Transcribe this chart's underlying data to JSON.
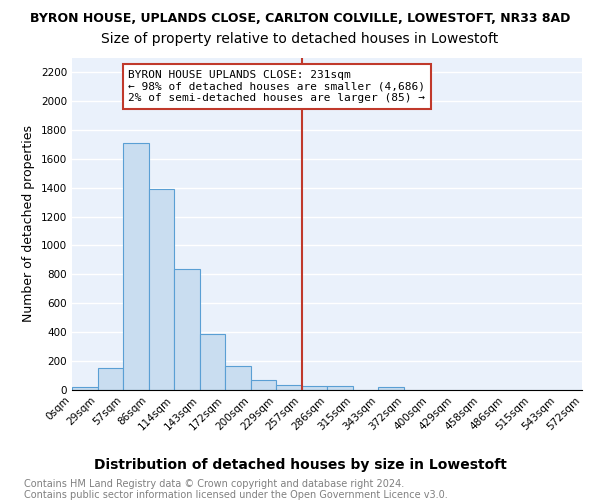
{
  "title": "BYRON HOUSE, UPLANDS CLOSE, CARLTON COLVILLE, LOWESTOFT, NR33 8AD",
  "subtitle": "Size of property relative to detached houses in Lowestoft",
  "xlabel": "Distribution of detached houses by size in Lowestoft",
  "ylabel": "Number of detached properties",
  "bin_labels": [
    "0sqm",
    "29sqm",
    "57sqm",
    "86sqm",
    "114sqm",
    "143sqm",
    "172sqm",
    "200sqm",
    "229sqm",
    "257sqm",
    "286sqm",
    "315sqm",
    "343sqm",
    "372sqm",
    "400sqm",
    "429sqm",
    "458sqm",
    "486sqm",
    "515sqm",
    "543sqm",
    "572sqm"
  ],
  "bar_heights": [
    20,
    155,
    1710,
    1390,
    835,
    390,
    165,
    70,
    35,
    30,
    30,
    0,
    20,
    0,
    0,
    0,
    0,
    0,
    0,
    0
  ],
  "bar_color": "#c9ddf0",
  "bar_edge_color": "#5a9fd4",
  "vline_x": 8,
  "vline_color": "#c0392b",
  "annotation_text": "BYRON HOUSE UPLANDS CLOSE: 231sqm\n← 98% of detached houses are smaller (4,686)\n2% of semi-detached houses are larger (85) →",
  "annotation_box_color": "white",
  "annotation_box_edge_color": "#c0392b",
  "ylim": [
    0,
    2300
  ],
  "yticks": [
    0,
    200,
    400,
    600,
    800,
    1000,
    1200,
    1400,
    1600,
    1800,
    2000,
    2200
  ],
  "background_color": "#eaf1fb",
  "grid_color": "white",
  "footer_line1": "Contains HM Land Registry data © Crown copyright and database right 2024.",
  "footer_line2": "Contains public sector information licensed under the Open Government Licence v3.0.",
  "title_fontsize": 9,
  "subtitle_fontsize": 10,
  "xlabel_fontsize": 10,
  "ylabel_fontsize": 9,
  "tick_fontsize": 7.5,
  "annotation_fontsize": 8,
  "footer_fontsize": 7
}
